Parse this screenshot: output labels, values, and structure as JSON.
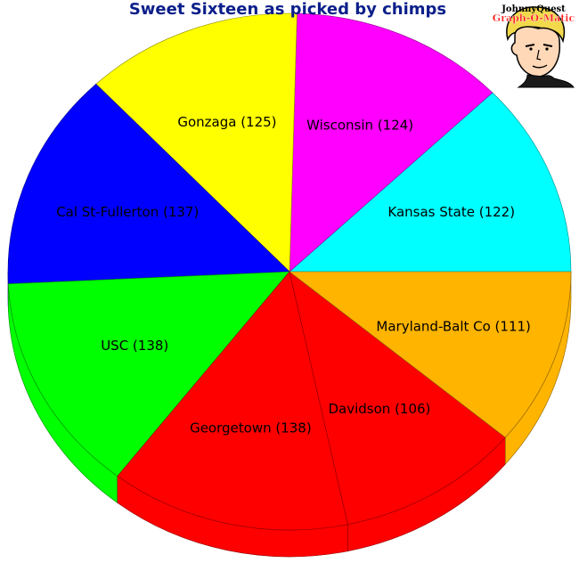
{
  "title": "Sweet Sixteen as picked by chimps",
  "logo": {
    "line1": "JohnnyQuest",
    "line2": "Graph-O-Matic"
  },
  "chart_data": {
    "type": "pie",
    "style": "3d",
    "title": "Sweet Sixteen as picked by chimps",
    "slices": [
      {
        "label": "Kansas State (122)",
        "name": "Kansas State",
        "value": 122,
        "color": "#00ffff"
      },
      {
        "label": "Wisconsin (124)",
        "name": "Wisconsin",
        "value": 124,
        "color": "#ff00ff"
      },
      {
        "label": "Gonzaga (125)",
        "name": "Gonzaga",
        "value": 125,
        "color": "#ffff00"
      },
      {
        "label": "Cal St-Fullerton (137)",
        "name": "Cal St-Fullerton",
        "value": 137,
        "color": "#0000ff"
      },
      {
        "label": "USC (138)",
        "name": "USC",
        "value": 138,
        "color": "#00ff00"
      },
      {
        "label": "Georgetown (138)",
        "name": "Georgetown",
        "value": 138,
        "color": "#ff0000"
      },
      {
        "label": "Davidson (106)",
        "name": "Davidson",
        "value": 106,
        "color": "#ff0000"
      },
      {
        "label": "Maryland-Balt Co (111)",
        "name": "Maryland-Balt Co",
        "value": 111,
        "color": "#ffb400"
      }
    ]
  }
}
